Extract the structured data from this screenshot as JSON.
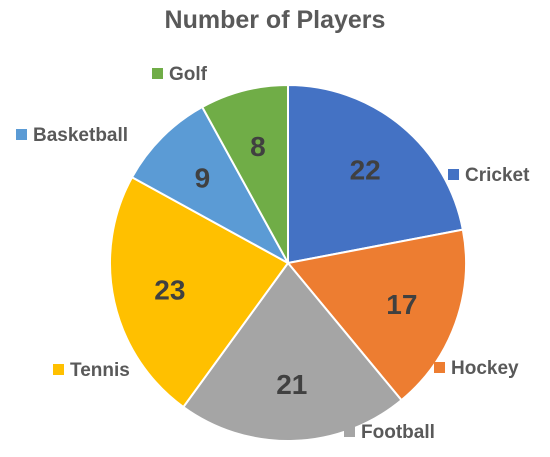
{
  "chart_data": {
    "type": "pie",
    "title": "Number of Players",
    "categories": [
      "Cricket",
      "Hockey",
      "Football",
      "Tennis",
      "Basketball",
      "Golf"
    ],
    "values": [
      22,
      17,
      21,
      23,
      9,
      8
    ],
    "colors": [
      "#4472C4",
      "#ED7D31",
      "#A5A5A5",
      "#FFC000",
      "#5B9BD5",
      "#70AD47"
    ],
    "legend": "labels-outside-slices"
  }
}
